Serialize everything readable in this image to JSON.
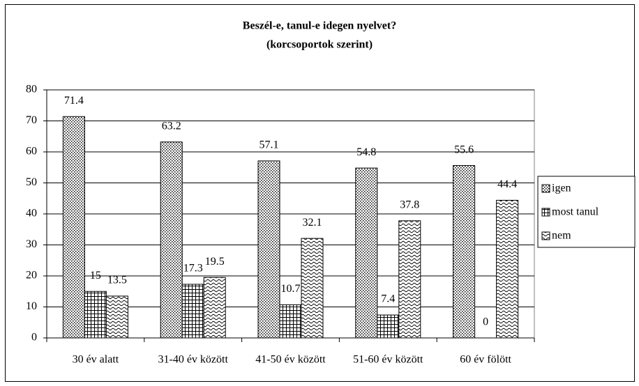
{
  "chart_data": {
    "type": "bar",
    "title": "Beszél-e, tanul-e idegen nyelvet?",
    "subtitle": "(korcsoportok szerint)",
    "categories": [
      "30 év alatt",
      "31-40 év között",
      "41-50 év között",
      "51-60 év között",
      "60 év fölött"
    ],
    "series": [
      {
        "name": "igen",
        "color": "#000000",
        "pattern": "dots",
        "values": [
          71.4,
          63.2,
          57.1,
          54.8,
          55.6
        ]
      },
      {
        "name": "most tanul",
        "color": "#000000",
        "pattern": "grid",
        "values": [
          15,
          17.3,
          10.7,
          7.4,
          0
        ]
      },
      {
        "name": "nem",
        "color": "#000000",
        "pattern": "waves",
        "values": [
          13.5,
          19.5,
          32.1,
          37.8,
          44.4
        ]
      }
    ],
    "ylim": [
      0,
      80
    ],
    "yticks": [
      0,
      10,
      20,
      30,
      40,
      50,
      60,
      70,
      80
    ],
    "grid": true,
    "legend": "right"
  }
}
